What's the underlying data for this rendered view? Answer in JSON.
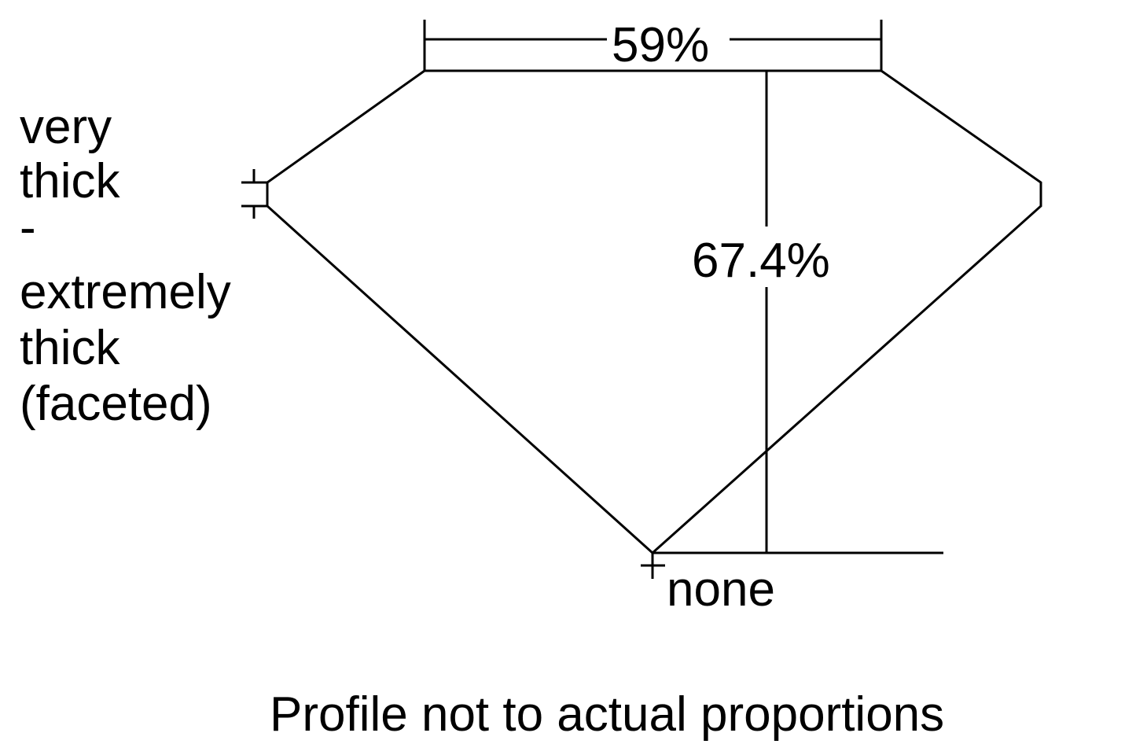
{
  "diagram": {
    "table_label": "59%",
    "depth_label": "67.4%",
    "girdle_label_lines": [
      "very",
      "thick",
      "-",
      "extremely",
      "thick",
      "(faceted)"
    ],
    "culet_label": "none",
    "caption": "Profile not to actual proportions",
    "line_color": "#000000"
  }
}
